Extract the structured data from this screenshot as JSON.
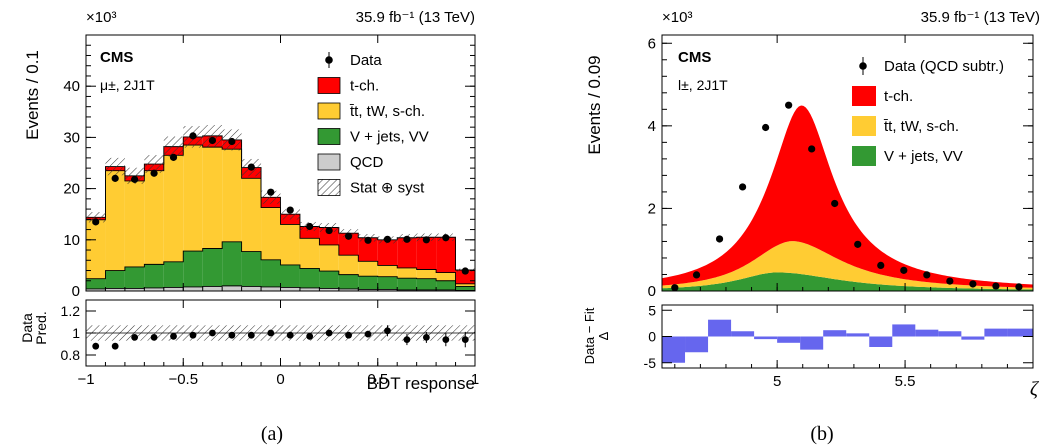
{
  "figure": {
    "panels": [
      {
        "caption": "(a)"
      },
      {
        "caption": "(b)"
      }
    ]
  },
  "chart_data": [
    {
      "type": "histogram",
      "panel": "a",
      "top_right_label": "35.9 fb⁻¹ (13 TeV)",
      "experiment": "CMS",
      "selection": "μ±, 2J1T",
      "scale_label": "×10³",
      "ylabel": "Events / 0.1",
      "xlabel": "BDT response",
      "ratio_ylabel_top": "Data",
      "ratio_ylabel_bottom": "Pred.",
      "xlim": [
        -1,
        1
      ],
      "ylim": [
        0,
        50
      ],
      "ratio_ylim": [
        0.7,
        1.3
      ],
      "x_ticks": [
        -1,
        -0.5,
        0,
        0.5,
        1
      ],
      "x_tick_labels": [
        "−1",
        "−0.5",
        "0",
        "0.5",
        "1"
      ],
      "y_ticks": [
        0,
        10,
        20,
        30,
        40
      ],
      "ratio_y_ticks": [
        0.8,
        1,
        1.2
      ],
      "bin_edges": [
        -1.0,
        -0.9,
        -0.8,
        -0.7,
        -0.6,
        -0.5,
        -0.4,
        -0.3,
        -0.2,
        -0.1,
        0.0,
        0.1,
        0.2,
        0.3,
        0.4,
        0.5,
        0.6,
        0.7,
        0.8,
        0.9,
        1.0
      ],
      "legend": [
        {
          "label": "Data",
          "kind": "marker"
        },
        {
          "label": "t-ch.",
          "color": "#ff0000"
        },
        {
          "label": "t̄t, tW, s-ch.",
          "color": "#ffcc33"
        },
        {
          "label": "V + jets, VV",
          "color": "#339933"
        },
        {
          "label": "QCD",
          "color": "#cccccc"
        },
        {
          "label": "Stat ⊕ syst",
          "kind": "hatch"
        }
      ],
      "stack": [
        {
          "name": "QCD",
          "color": "#cccccc",
          "values": [
            0.4,
            0.5,
            0.5,
            0.6,
            0.7,
            0.8,
            0.9,
            1.0,
            0.9,
            0.8,
            0.7,
            0.6,
            0.5,
            0.4,
            0.3,
            0.3,
            0.2,
            0.2,
            0.2,
            0.1
          ]
        },
        {
          "name": "V + jets, VV",
          "color": "#339933",
          "values": [
            2.0,
            3.5,
            4.2,
            4.6,
            5.0,
            7.0,
            7.4,
            8.6,
            6.8,
            5.3,
            4.4,
            3.8,
            3.4,
            2.8,
            2.6,
            2.5,
            2.3,
            2.2,
            1.8,
            0.8
          ]
        },
        {
          "name": "t̄t, tW, s-ch.",
          "color": "#ffcc33",
          "values": [
            11.5,
            19.5,
            16.8,
            18.3,
            20.8,
            20.7,
            19.8,
            18.1,
            14.3,
            10.2,
            7.9,
            5.9,
            5.1,
            3.8,
            2.9,
            2.2,
            2.0,
            1.8,
            1.6,
            0.5
          ]
        },
        {
          "name": "t-ch.",
          "color": "#ff0000",
          "values": [
            0.5,
            0.8,
            1.0,
            1.3,
            1.7,
            1.6,
            2.2,
            1.8,
            2.1,
            2.0,
            2.0,
            2.3,
            3.4,
            4.3,
            4.6,
            5.0,
            5.9,
            6.3,
            6.9,
            2.7
          ]
        }
      ],
      "uncertainty_rel": 0.07,
      "data_points": [
        13.5,
        22.0,
        21.8,
        23.0,
        26.1,
        30.3,
        29.4,
        29.2,
        24.2,
        19.3,
        15.8,
        12.6,
        11.8,
        10.7,
        9.9,
        10.1,
        10.1,
        10.0,
        10.4,
        3.9
      ],
      "ratio_points": [
        0.88,
        0.88,
        0.96,
        0.96,
        0.97,
        0.98,
        1.0,
        0.98,
        0.98,
        1.0,
        0.98,
        0.97,
        1.0,
        0.98,
        0.99,
        1.02,
        0.94,
        0.96,
        0.94,
        0.94
      ],
      "ratio_errors": [
        0.03,
        0.02,
        0.02,
        0.02,
        0.02,
        0.02,
        0.02,
        0.02,
        0.02,
        0.02,
        0.02,
        0.03,
        0.03,
        0.03,
        0.03,
        0.05,
        0.05,
        0.05,
        0.06,
        0.07
      ]
    },
    {
      "type": "area",
      "panel": "b",
      "top_right_label": "35.9 fb⁻¹ (13 TeV)",
      "experiment": "CMS",
      "selection": "l±, 2J1T",
      "scale_label": "×10³",
      "ylabel": "Events / 0.09",
      "xlabel": "ζ",
      "ratio_ylabel_top": "Data − Fit",
      "ratio_ylabel_bottom": "Δ",
      "xlim": [
        4.55,
        6.0
      ],
      "ylim": [
        0,
        6.2
      ],
      "ratio_ylim": [
        -6,
        6
      ],
      "x_ticks": [
        5,
        5.5
      ],
      "x_tick_labels": [
        "5",
        "5.5"
      ],
      "y_ticks": [
        0,
        2,
        4,
        6
      ],
      "ratio_y_ticks": [
        -5,
        0,
        5
      ],
      "legend": [
        {
          "label": "Data (QCD subtr.)",
          "kind": "marker"
        },
        {
          "label": "t-ch.",
          "color": "#ff0000"
        },
        {
          "label": "t̄t, tW, s-ch.",
          "color": "#ffcc33"
        },
        {
          "label": "V + jets, VV",
          "color": "#339933"
        }
      ],
      "components": [
        {
          "name": "V + jets, VV",
          "color": "#339933",
          "peak": 0.45,
          "center": 5.0,
          "sigma_left": 0.2,
          "sigma_right": 0.32
        },
        {
          "name": "t̄t, tW, s-ch.",
          "color": "#ffcc33",
          "peak": 0.78,
          "center": 5.07,
          "sigma_left": 0.17,
          "sigma_right": 0.24
        },
        {
          "name": "t-ch.",
          "color": "#ff0000",
          "peak": 3.32,
          "center": 5.1,
          "sigma_left": 0.14,
          "sigma_right": 0.15
        }
      ],
      "data_x": [
        4.6,
        4.685,
        4.775,
        4.865,
        4.955,
        5.045,
        5.135,
        5.225,
        5.315,
        5.405,
        5.495,
        5.585,
        5.675,
        5.765,
        5.855,
        5.945
      ],
      "data_y": [
        0.08,
        0.39,
        1.26,
        2.52,
        3.96,
        4.5,
        3.44,
        2.12,
        1.13,
        0.62,
        0.5,
        0.39,
        0.24,
        0.17,
        0.12,
        0.1
      ],
      "ratio_bin_edges": [
        4.55,
        4.64,
        4.73,
        4.82,
        4.91,
        5.0,
        5.09,
        5.18,
        5.27,
        5.36,
        5.45,
        5.54,
        5.63,
        5.72,
        5.81,
        5.9,
        6.0
      ],
      "ratio_values": [
        -5.0,
        -3.0,
        3.2,
        1.0,
        -0.5,
        -1.2,
        -2.5,
        1.2,
        0.6,
        -2.0,
        2.3,
        1.3,
        1.0,
        -0.6,
        1.5,
        1.5
      ]
    }
  ]
}
